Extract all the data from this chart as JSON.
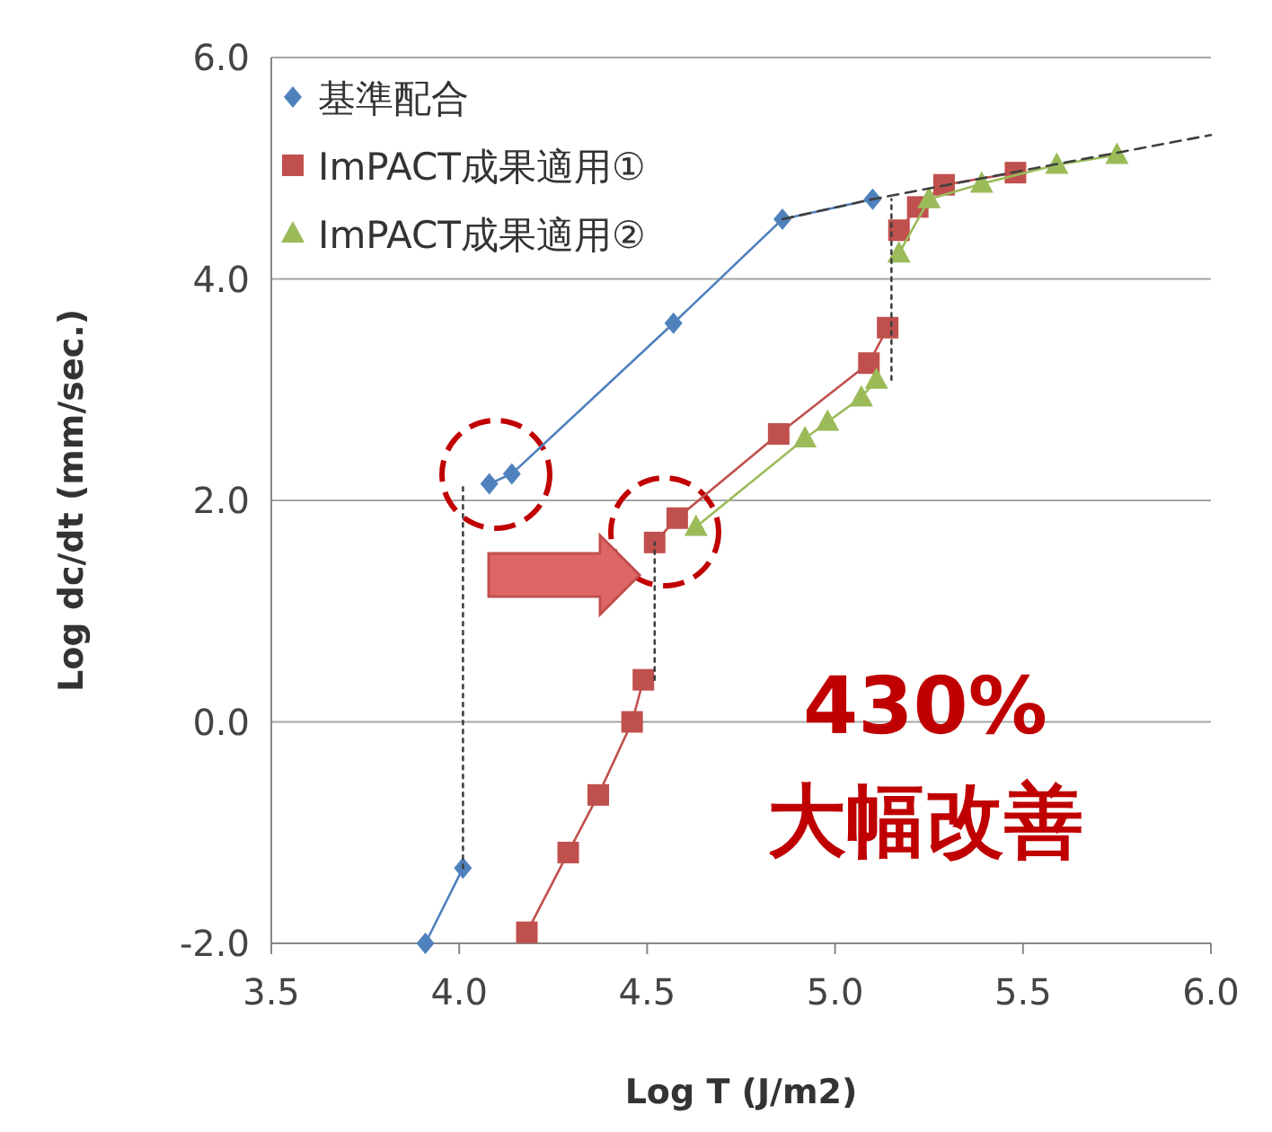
{
  "chart_data": {
    "type": "line",
    "xlabel": "Log T (J/m2)",
    "ylabel": "Log dc/dt (mm/sec.)",
    "xlim": [
      3.5,
      6.0
    ],
    "xticks": [
      {
        "value": 3.5,
        "label": "3.5"
      },
      {
        "value": 4.0,
        "label": "4.0"
      },
      {
        "value": 4.5,
        "label": "4.5"
      },
      {
        "value": 5.0,
        "label": "5.0"
      },
      {
        "value": 5.5,
        "label": "5.5"
      },
      {
        "value": 6.0,
        "label": "6.0"
      }
    ],
    "ylim": [
      -2.0,
      6.0
    ],
    "yticks": [
      {
        "value": -2.0,
        "label": "-2.0"
      },
      {
        "value": 0.0,
        "label": "0.0"
      },
      {
        "value": 2.0,
        "label": "2.0"
      },
      {
        "value": 4.0,
        "label": "4.0"
      },
      {
        "value": 6.0,
        "label": "6.0"
      }
    ],
    "grid": "y",
    "legend": "top left",
    "line_style": "solid",
    "series": [
      {
        "name": "基準配合",
        "color": "#4f81bd",
        "marker": "diamond",
        "x": [
          3.91,
          4.01,
          null,
          4.08,
          4.14,
          4.57,
          4.86,
          5.1
        ],
        "values": [
          -2.0,
          -1.32,
          null,
          2.15,
          2.24,
          3.6,
          4.54,
          4.72
        ]
      },
      {
        "name": "ImPACT成果適用①",
        "color": "#c0504d",
        "marker": "square",
        "x": [
          4.18,
          4.29,
          4.37,
          4.46,
          4.49,
          null,
          4.52,
          4.58,
          4.85,
          5.09,
          5.14,
          null,
          5.17,
          5.22,
          5.29,
          5.48
        ],
        "values": [
          -1.9,
          -1.18,
          -0.66,
          0.0,
          0.38,
          null,
          1.62,
          1.84,
          2.6,
          3.24,
          3.56,
          null,
          4.44,
          4.65,
          4.85,
          4.96
        ]
      },
      {
        "name": "ImPACT成果適用②",
        "color": "#9bbb59",
        "marker": "triangle",
        "x": [
          4.63,
          4.92,
          4.98,
          5.07,
          5.11,
          null,
          5.17,
          5.25,
          5.39,
          5.59,
          5.75
        ],
        "values": [
          1.76,
          2.56,
          2.71,
          2.93,
          3.09,
          null,
          4.23,
          4.72,
          4.86,
          5.03,
          5.12
        ]
      },
      {
        "color": "#404040",
        "marker": "none",
        "line_style": "dashed",
        "x": [
          4.86,
          5.1,
          5.5,
          6.0
        ],
        "values": [
          4.54,
          4.72,
          4.98,
          5.3
        ]
      },
      {
        "color": "#404040",
        "marker": "none",
        "line_style": "dotted",
        "x": [
          4.01,
          4.01
        ],
        "values": [
          -1.32,
          2.15
        ]
      },
      {
        "color": "#404040",
        "marker": "none",
        "line_style": "dotted",
        "x": [
          4.52,
          4.52
        ],
        "values": [
          0.38,
          1.62
        ]
      },
      {
        "color": "#404040",
        "marker": "none",
        "line_style": "dotted",
        "x": [
          5.15,
          5.15
        ],
        "values": [
          3.09,
          4.72
        ]
      }
    ],
    "annotations": [
      "430%",
      "大幅改善"
    ]
  }
}
